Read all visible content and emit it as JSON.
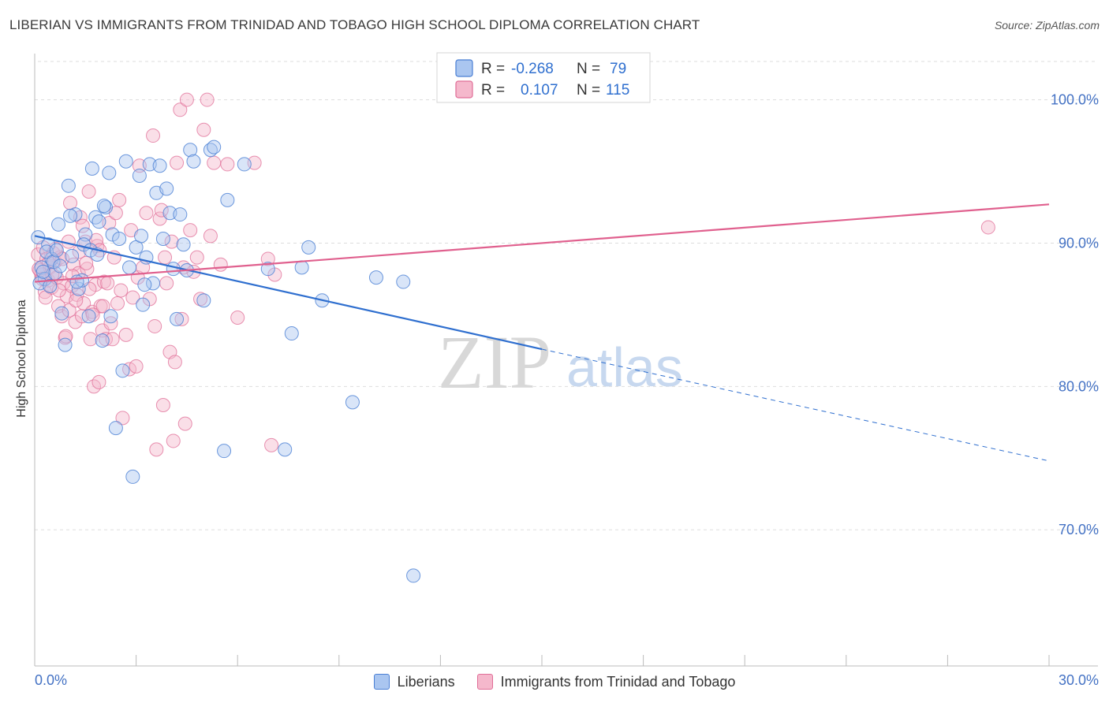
{
  "title": "LIBERIAN VS IMMIGRANTS FROM TRINIDAD AND TOBAGO HIGH SCHOOL DIPLOMA CORRELATION CHART",
  "source": "Source: ZipAtlas.com",
  "watermark": {
    "zip": "ZIP",
    "atlas": "atlas"
  },
  "legend_box": {
    "rows": [
      {
        "r_label": "R =",
        "r_value": "-0.268",
        "n_label": "N =",
        "n_value": "79"
      },
      {
        "r_label": "R =",
        "r_value": "0.107",
        "n_label": "N =",
        "n_value": "115"
      }
    ]
  },
  "bottom_legend": [
    "Liberians",
    "Immigrants from Trinidad and Tobago"
  ],
  "colors": {
    "blue": "#4a7fd4",
    "blue_fill": "#aac6f0",
    "blue_line": "#2f6fcf",
    "pink": "#e06d97",
    "pink_fill": "#f5b8cc",
    "pink_line": "#e0608e",
    "tick": "#4472c4",
    "grid": "#dddddd"
  },
  "chart_data": {
    "type": "scatter",
    "title": "LIBERIAN VS IMMIGRANTS FROM TRINIDAD AND TOBAGO HIGH SCHOOL DIPLOMA CORRELATION CHART",
    "xlabel": "",
    "ylabel": "High School Diploma",
    "xlim": [
      0,
      30
    ],
    "ylim": [
      60.5,
      103
    ],
    "x_tick_labels": [
      "0.0%",
      "30.0%"
    ],
    "y_ticks": [
      70,
      80,
      90,
      100
    ],
    "y_tick_labels": [
      "70.0%",
      "80.0%",
      "90.0%",
      "100.0%"
    ],
    "grid": true,
    "legend_position": "top-center",
    "series": [
      {
        "name": "Liberians",
        "r": -0.268,
        "n": 79,
        "trend": {
          "x0": 0,
          "y0": 90.5,
          "x1": 15,
          "y1": 82.6,
          "dashed_to_x": 30,
          "dashed_to_y": 74.8
        },
        "points": [
          [
            0.1,
            90.4
          ],
          [
            0.2,
            88.3
          ],
          [
            0.3,
            87.5
          ],
          [
            0.4,
            89.9
          ],
          [
            0.5,
            88.9
          ],
          [
            0.6,
            87.9
          ],
          [
            0.7,
            91.3
          ],
          [
            0.8,
            85.1
          ],
          [
            0.9,
            82.9
          ],
          [
            1.0,
            94.0
          ],
          [
            1.1,
            89.1
          ],
          [
            1.2,
            92.0
          ],
          [
            1.3,
            86.8
          ],
          [
            1.4,
            87.4
          ],
          [
            1.5,
            90.6
          ],
          [
            1.6,
            84.9
          ],
          [
            1.7,
            95.2
          ],
          [
            1.8,
            91.8
          ],
          [
            1.9,
            91.5
          ],
          [
            2.0,
            83.2
          ],
          [
            2.1,
            92.5
          ],
          [
            2.2,
            94.9
          ],
          [
            2.3,
            90.6
          ],
          [
            2.4,
            77.1
          ],
          [
            2.5,
            90.3
          ],
          [
            2.6,
            81.1
          ],
          [
            2.7,
            95.7
          ],
          [
            2.8,
            88.3
          ],
          [
            2.9,
            73.7
          ],
          [
            3.0,
            89.7
          ],
          [
            3.1,
            94.7
          ],
          [
            3.2,
            85.7
          ],
          [
            3.3,
            89.0
          ],
          [
            3.4,
            95.5
          ],
          [
            3.5,
            87.2
          ],
          [
            3.6,
            93.5
          ],
          [
            3.7,
            95.4
          ],
          [
            3.8,
            90.3
          ],
          [
            3.9,
            93.8
          ],
          [
            4.0,
            92.1
          ],
          [
            4.1,
            88.2
          ],
          [
            4.2,
            84.7
          ],
          [
            4.3,
            92.0
          ],
          [
            4.4,
            89.9
          ],
          [
            4.5,
            88.1
          ],
          [
            4.6,
            96.5
          ],
          [
            4.7,
            95.7
          ],
          [
            5.0,
            86.0
          ],
          [
            5.2,
            96.5
          ],
          [
            5.6,
            75.5
          ],
          [
            5.7,
            93.0
          ],
          [
            6.2,
            95.5
          ],
          [
            6.9,
            88.2
          ],
          [
            7.4,
            75.6
          ],
          [
            7.6,
            83.7
          ],
          [
            7.9,
            88.3
          ],
          [
            8.1,
            89.7
          ],
          [
            8.5,
            86.0
          ],
          [
            9.4,
            78.9
          ],
          [
            10.1,
            87.6
          ],
          [
            10.9,
            87.3
          ],
          [
            11.2,
            66.8
          ],
          [
            0.15,
            87.2
          ],
          [
            0.25,
            88.0
          ],
          [
            0.35,
            89.4
          ],
          [
            0.45,
            87.0
          ],
          [
            0.55,
            88.7
          ],
          [
            0.65,
            89.5
          ],
          [
            0.75,
            88.4
          ],
          [
            1.05,
            91.9
          ],
          [
            1.25,
            87.3
          ],
          [
            1.45,
            89.9
          ],
          [
            1.65,
            89.5
          ],
          [
            1.85,
            89.2
          ],
          [
            2.05,
            92.6
          ],
          [
            2.25,
            84.9
          ],
          [
            3.15,
            90.5
          ],
          [
            3.25,
            87.1
          ],
          [
            5.3,
            96.7
          ]
        ]
      },
      {
        "name": "Immigrants from Trinidad and Tobago",
        "r": 0.107,
        "n": 115,
        "trend": {
          "x0": 0,
          "y0": 87.3,
          "x1": 30,
          "y1": 92.7
        },
        "points": [
          [
            0.1,
            89.2
          ],
          [
            0.15,
            88.1
          ],
          [
            0.2,
            87.8
          ],
          [
            0.25,
            89.7
          ],
          [
            0.3,
            86.6
          ],
          [
            0.35,
            88.9
          ],
          [
            0.4,
            87.4
          ],
          [
            0.45,
            88.3
          ],
          [
            0.5,
            86.9
          ],
          [
            0.55,
            89.3
          ],
          [
            0.6,
            88.7
          ],
          [
            0.65,
            87.6
          ],
          [
            0.7,
            85.6
          ],
          [
            0.75,
            89.0
          ],
          [
            0.8,
            84.9
          ],
          [
            0.85,
            87.2
          ],
          [
            0.9,
            83.4
          ],
          [
            0.95,
            86.3
          ],
          [
            1.0,
            90.1
          ],
          [
            1.05,
            92.8
          ],
          [
            1.1,
            87.0
          ],
          [
            1.15,
            88.5
          ],
          [
            1.2,
            84.5
          ],
          [
            1.25,
            86.4
          ],
          [
            1.3,
            87.9
          ],
          [
            1.35,
            91.8
          ],
          [
            1.4,
            84.9
          ],
          [
            1.45,
            85.8
          ],
          [
            1.5,
            90.1
          ],
          [
            1.55,
            88.2
          ],
          [
            1.6,
            93.6
          ],
          [
            1.65,
            83.3
          ],
          [
            1.7,
            85.2
          ],
          [
            1.75,
            80.0
          ],
          [
            1.8,
            87.1
          ],
          [
            1.85,
            89.8
          ],
          [
            1.9,
            80.3
          ],
          [
            1.95,
            85.6
          ],
          [
            2.0,
            83.9
          ],
          [
            2.05,
            87.3
          ],
          [
            2.1,
            83.3
          ],
          [
            2.2,
            91.4
          ],
          [
            2.25,
            84.4
          ],
          [
            2.3,
            83.3
          ],
          [
            2.4,
            92.1
          ],
          [
            2.45,
            85.8
          ],
          [
            2.5,
            93.0
          ],
          [
            2.6,
            77.8
          ],
          [
            2.7,
            83.6
          ],
          [
            2.8,
            81.2
          ],
          [
            2.85,
            90.9
          ],
          [
            2.9,
            86.2
          ],
          [
            3.0,
            81.4
          ],
          [
            3.05,
            87.6
          ],
          [
            3.1,
            95.4
          ],
          [
            3.2,
            88.3
          ],
          [
            3.3,
            92.1
          ],
          [
            3.4,
            86.1
          ],
          [
            3.5,
            97.5
          ],
          [
            3.55,
            84.2
          ],
          [
            3.6,
            75.6
          ],
          [
            3.7,
            91.7
          ],
          [
            3.75,
            92.3
          ],
          [
            3.8,
            78.7
          ],
          [
            3.85,
            89.0
          ],
          [
            3.9,
            87.2
          ],
          [
            4.0,
            82.4
          ],
          [
            4.05,
            90.1
          ],
          [
            4.1,
            76.2
          ],
          [
            4.15,
            81.7
          ],
          [
            4.2,
            95.6
          ],
          [
            4.3,
            99.3
          ],
          [
            4.35,
            84.7
          ],
          [
            4.4,
            88.3
          ],
          [
            4.45,
            77.4
          ],
          [
            4.5,
            100.0
          ],
          [
            4.6,
            90.9
          ],
          [
            4.7,
            88.0
          ],
          [
            4.8,
            89.0
          ],
          [
            4.9,
            86.1
          ],
          [
            5.0,
            97.9
          ],
          [
            5.1,
            100.0
          ],
          [
            5.2,
            90.5
          ],
          [
            5.3,
            95.6
          ],
          [
            5.5,
            88.5
          ],
          [
            5.7,
            95.5
          ],
          [
            6.0,
            84.8
          ],
          [
            6.5,
            95.6
          ],
          [
            6.9,
            88.9
          ],
          [
            7.0,
            75.9
          ],
          [
            7.1,
            87.8
          ],
          [
            0.12,
            88.2
          ],
          [
            0.22,
            87.5
          ],
          [
            0.32,
            86.2
          ],
          [
            0.42,
            88.6
          ],
          [
            0.52,
            87.8
          ],
          [
            0.62,
            89.6
          ],
          [
            0.72,
            86.7
          ],
          [
            0.82,
            88.9
          ],
          [
            0.92,
            83.5
          ],
          [
            1.02,
            85.3
          ],
          [
            1.12,
            87.7
          ],
          [
            1.22,
            86.0
          ],
          [
            1.32,
            89.4
          ],
          [
            1.42,
            91.2
          ],
          [
            1.52,
            88.6
          ],
          [
            1.62,
            86.8
          ],
          [
            1.72,
            85.0
          ],
          [
            1.82,
            90.2
          ],
          [
            1.92,
            89.5
          ],
          [
            2.02,
            85.6
          ],
          [
            2.15,
            87.2
          ],
          [
            2.35,
            89.0
          ],
          [
            2.55,
            86.7
          ],
          [
            28.2,
            91.1
          ]
        ]
      }
    ]
  }
}
